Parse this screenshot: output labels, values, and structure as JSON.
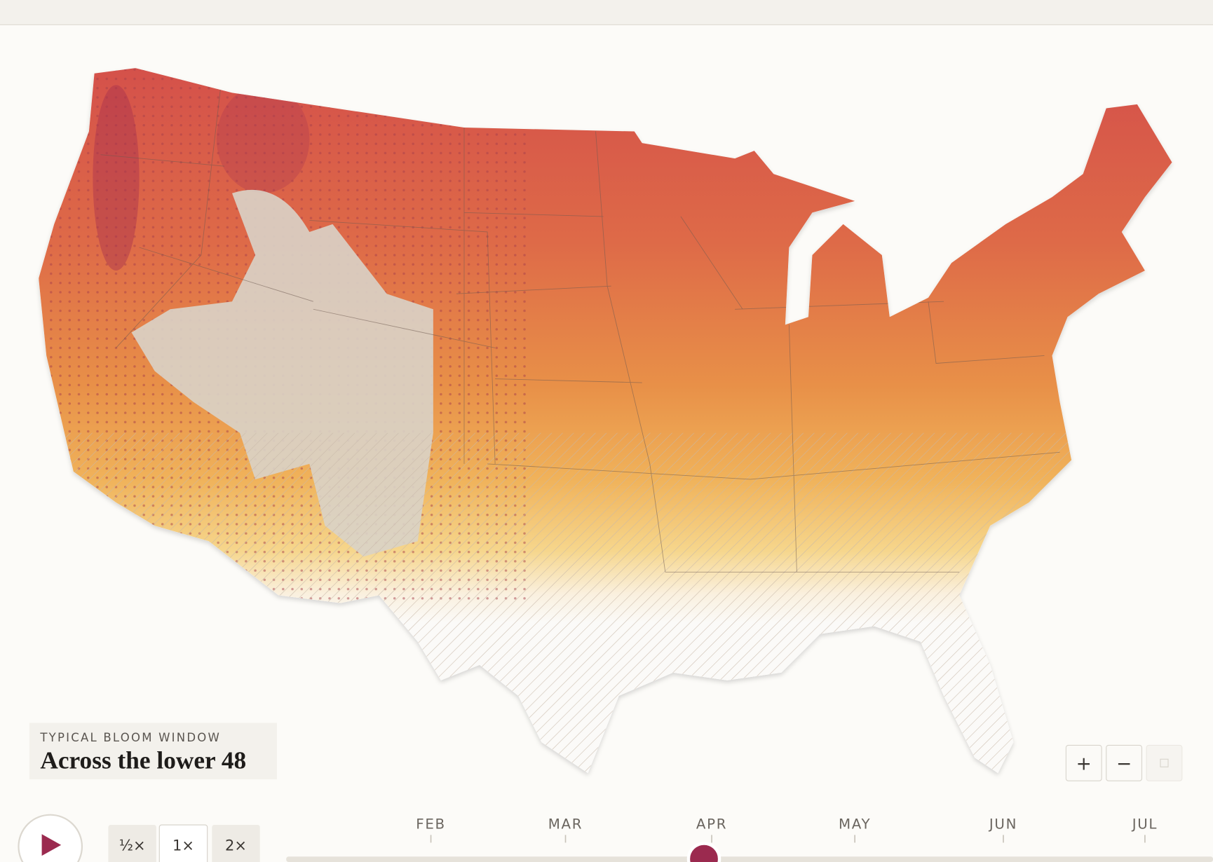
{
  "legend": {
    "eyebrow": "TYPICAL BLOOM WINDOW",
    "title": "Across the lower 48"
  },
  "speed_buttons": [
    "½×",
    "1×",
    "2×"
  ],
  "zoom_buttons": [
    "+",
    "−"
  ],
  "timeline": {
    "months": [
      "FEB",
      "MAR",
      "APR",
      "MAY",
      "JUN",
      "JUL"
    ]
  }
}
